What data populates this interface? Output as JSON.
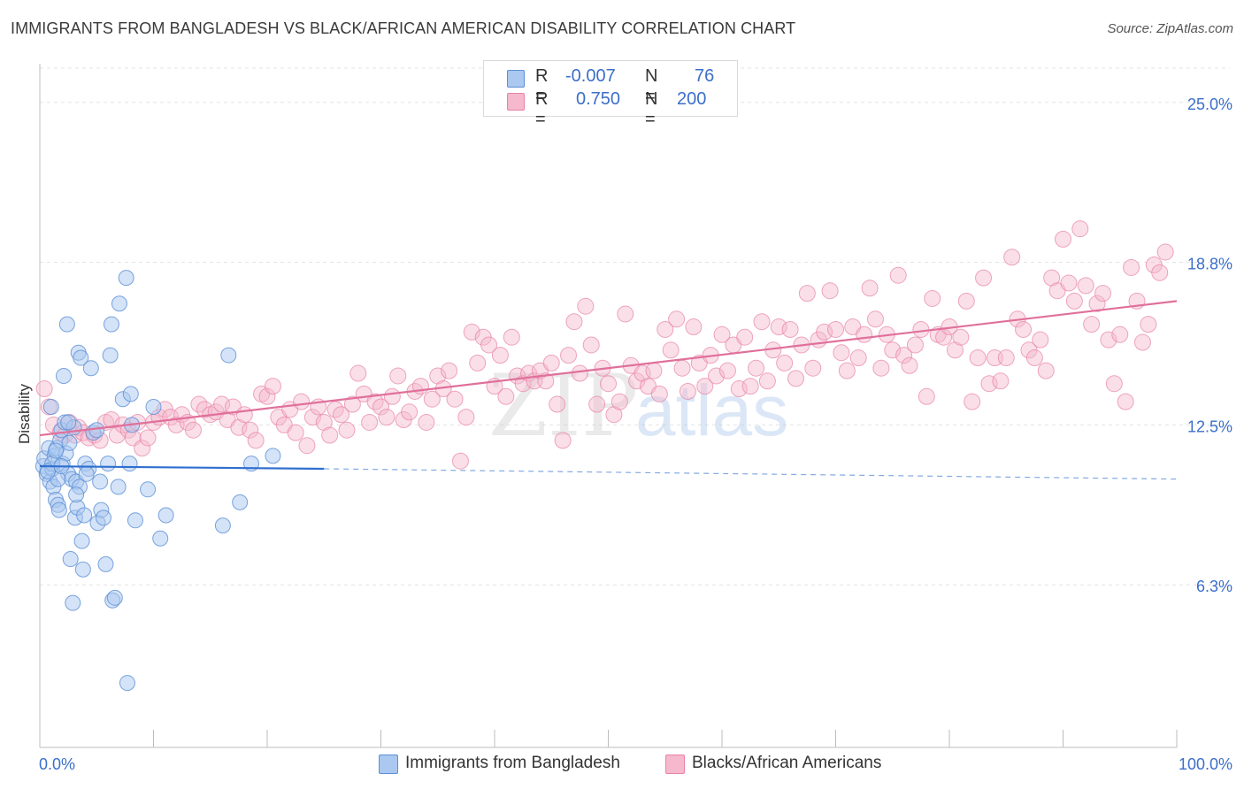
{
  "title": "IMMIGRANTS FROM BANGLADESH VS BLACK/AFRICAN AMERICAN DISABILITY CORRELATION CHART",
  "source": "Source: ZipAtlas.com",
  "watermark": {
    "zip": "ZIP",
    "atlas": "atlas"
  },
  "legend_stats": {
    "r_label": "R =",
    "n_label": "N =",
    "series1": {
      "r": "-0.007",
      "n": "76"
    },
    "series2": {
      "r": "0.750",
      "n": "200"
    }
  },
  "colors": {
    "blue_fill": "#aac8f0",
    "blue_stroke": "#5b8fd6",
    "blue_line": "#2f6fcf",
    "pink_fill": "#f5b8cc",
    "pink_stroke": "#e882a4",
    "pink_line": "#e0709a",
    "tick_label": "#3b6fc9",
    "grid": "#e3e3e3"
  },
  "chart_data": {
    "type": "scatter",
    "title": "IMMIGRANTS FROM BANGLADESH VS BLACK/AFRICAN AMERICAN DISABILITY CORRELATION CHART",
    "ylabel": "Disability",
    "xlabel": "",
    "xlim": [
      0,
      100
    ],
    "ylim": [
      0,
      26.5
    ],
    "x_tick_labels": [
      "0.0%",
      "100.0%"
    ],
    "y_ticks": [
      6.3,
      12.5,
      18.8,
      25.0
    ],
    "y_tick_labels": [
      "6.3%",
      "12.5%",
      "18.8%",
      "25.0%"
    ],
    "grid": true,
    "legend_position": "bottom",
    "series": [
      {
        "name": "Immigrants from Bangladesh",
        "r": -0.007,
        "n": 76,
        "trend": {
          "x": [
            0,
            25
          ],
          "y": [
            10.9,
            10.8
          ]
        },
        "trend_extension": {
          "x": [
            25,
            100
          ],
          "y": [
            10.8,
            10.4
          ]
        },
        "points": [
          [
            0.3,
            10.9
          ],
          [
            0.4,
            11.2
          ],
          [
            0.6,
            10.6
          ],
          [
            0.8,
            11.6
          ],
          [
            0.9,
            10.3
          ],
          [
            1.0,
            13.2
          ],
          [
            1.1,
            10.8
          ],
          [
            1.2,
            10.1
          ],
          [
            1.3,
            11.3
          ],
          [
            1.4,
            9.6
          ],
          [
            1.5,
            11.6
          ],
          [
            1.6,
            9.4
          ],
          [
            1.7,
            9.2
          ],
          [
            1.8,
            11.9
          ],
          [
            1.9,
            12.3
          ],
          [
            2.0,
            11.0
          ],
          [
            2.1,
            14.4
          ],
          [
            2.2,
            12.6
          ],
          [
            2.3,
            11.4
          ],
          [
            2.4,
            16.4
          ],
          [
            2.5,
            10.6
          ],
          [
            2.6,
            11.8
          ],
          [
            2.7,
            7.3
          ],
          [
            2.8,
            10.4
          ],
          [
            3.0,
            12.4
          ],
          [
            3.1,
            8.9
          ],
          [
            3.2,
            10.3
          ],
          [
            3.3,
            9.3
          ],
          [
            3.4,
            15.3
          ],
          [
            3.5,
            10.1
          ],
          [
            3.6,
            15.1
          ],
          [
            3.7,
            8.0
          ],
          [
            3.8,
            6.9
          ],
          [
            3.9,
            9.0
          ],
          [
            4.0,
            11.0
          ],
          [
            4.3,
            10.8
          ],
          [
            4.5,
            14.7
          ],
          [
            4.7,
            12.2
          ],
          [
            5.0,
            12.3
          ],
          [
            5.1,
            8.7
          ],
          [
            5.4,
            9.2
          ],
          [
            5.6,
            8.9
          ],
          [
            5.8,
            7.1
          ],
          [
            6.0,
            11.0
          ],
          [
            6.2,
            15.2
          ],
          [
            6.3,
            16.4
          ],
          [
            6.4,
            5.7
          ],
          [
            6.6,
            5.8
          ],
          [
            6.9,
            10.1
          ],
          [
            7.0,
            17.2
          ],
          [
            7.3,
            13.5
          ],
          [
            7.6,
            18.2
          ],
          [
            7.7,
            2.5
          ],
          [
            7.9,
            11.0
          ],
          [
            8.0,
            13.7
          ],
          [
            8.1,
            12.5
          ],
          [
            8.4,
            8.8
          ],
          [
            9.5,
            10.0
          ],
          [
            10.0,
            13.2
          ],
          [
            10.6,
            8.1
          ],
          [
            11.1,
            9.0
          ],
          [
            16.1,
            8.6
          ],
          [
            16.6,
            15.2
          ],
          [
            17.6,
            9.5
          ],
          [
            18.6,
            11.0
          ],
          [
            20.5,
            11.3
          ],
          [
            1.1,
            11.0
          ],
          [
            1.6,
            10.4
          ],
          [
            2.9,
            5.6
          ],
          [
            3.2,
            9.8
          ],
          [
            0.7,
            10.7
          ],
          [
            1.9,
            10.9
          ],
          [
            4.1,
            10.6
          ],
          [
            5.3,
            10.3
          ],
          [
            2.5,
            12.6
          ],
          [
            1.4,
            11.5
          ]
        ]
      },
      {
        "name": "Blacks/African Americans",
        "r": 0.75,
        "n": 200,
        "trend": {
          "x": [
            0,
            100
          ],
          "y": [
            12.1,
            17.3
          ]
        },
        "points": [
          [
            0.4,
            13.9
          ],
          [
            0.8,
            13.2
          ],
          [
            1.2,
            12.5
          ],
          [
            1.8,
            12.2
          ],
          [
            2.2,
            12.1
          ],
          [
            2.6,
            12.6
          ],
          [
            3.1,
            12.1
          ],
          [
            3.4,
            12.4
          ],
          [
            3.8,
            12.2
          ],
          [
            4.3,
            12.0
          ],
          [
            4.8,
            12.1
          ],
          [
            5.3,
            11.9
          ],
          [
            5.8,
            12.6
          ],
          [
            6.3,
            12.7
          ],
          [
            6.8,
            12.1
          ],
          [
            7.3,
            12.5
          ],
          [
            7.8,
            12.3
          ],
          [
            8.2,
            12.0
          ],
          [
            8.6,
            12.6
          ],
          [
            9.0,
            11.6
          ],
          [
            9.5,
            12.0
          ],
          [
            10.0,
            12.6
          ],
          [
            10.5,
            12.8
          ],
          [
            11.0,
            13.1
          ],
          [
            11.5,
            12.8
          ],
          [
            12.0,
            12.5
          ],
          [
            12.5,
            12.9
          ],
          [
            13.0,
            12.6
          ],
          [
            13.5,
            12.3
          ],
          [
            14.0,
            13.3
          ],
          [
            14.5,
            13.1
          ],
          [
            15.0,
            12.9
          ],
          [
            15.5,
            13.0
          ],
          [
            16.0,
            13.3
          ],
          [
            16.5,
            12.7
          ],
          [
            17.0,
            13.2
          ],
          [
            17.5,
            12.4
          ],
          [
            18.0,
            12.9
          ],
          [
            18.5,
            12.3
          ],
          [
            19.0,
            11.9
          ],
          [
            19.5,
            13.7
          ],
          [
            20.0,
            13.6
          ],
          [
            20.5,
            14.0
          ],
          [
            21.0,
            12.8
          ],
          [
            21.5,
            12.5
          ],
          [
            22.0,
            13.1
          ],
          [
            22.5,
            12.2
          ],
          [
            23.0,
            13.4
          ],
          [
            23.5,
            11.7
          ],
          [
            24.0,
            12.8
          ],
          [
            24.5,
            13.2
          ],
          [
            25.0,
            12.6
          ],
          [
            25.5,
            12.1
          ],
          [
            26.0,
            13.1
          ],
          [
            26.5,
            12.9
          ],
          [
            27.0,
            12.3
          ],
          [
            27.5,
            13.3
          ],
          [
            28.0,
            14.5
          ],
          [
            28.5,
            13.7
          ],
          [
            29.0,
            12.6
          ],
          [
            29.5,
            13.4
          ],
          [
            30.0,
            13.2
          ],
          [
            30.5,
            12.8
          ],
          [
            31.0,
            13.6
          ],
          [
            31.5,
            14.4
          ],
          [
            32.0,
            12.7
          ],
          [
            32.5,
            13.0
          ],
          [
            33.0,
            13.8
          ],
          [
            33.5,
            14.0
          ],
          [
            34.0,
            12.6
          ],
          [
            34.5,
            13.5
          ],
          [
            35.0,
            14.4
          ],
          [
            35.5,
            13.9
          ],
          [
            36.0,
            14.6
          ],
          [
            36.5,
            13.5
          ],
          [
            37.0,
            11.1
          ],
          [
            37.5,
            12.8
          ],
          [
            38.0,
            16.1
          ],
          [
            38.5,
            14.9
          ],
          [
            39.0,
            15.9
          ],
          [
            39.5,
            15.6
          ],
          [
            40.0,
            14.0
          ],
          [
            40.5,
            15.2
          ],
          [
            41.0,
            13.6
          ],
          [
            41.5,
            15.9
          ],
          [
            42.0,
            14.4
          ],
          [
            42.5,
            14.1
          ],
          [
            43.0,
            14.5
          ],
          [
            43.5,
            14.2
          ],
          [
            44.0,
            14.6
          ],
          [
            44.5,
            14.2
          ],
          [
            45.0,
            14.9
          ],
          [
            45.5,
            13.3
          ],
          [
            46.0,
            11.9
          ],
          [
            46.5,
            15.2
          ],
          [
            47.0,
            16.5
          ],
          [
            47.5,
            14.5
          ],
          [
            48.0,
            17.1
          ],
          [
            48.5,
            15.6
          ],
          [
            49.0,
            13.3
          ],
          [
            49.5,
            14.7
          ],
          [
            50.0,
            14.1
          ],
          [
            50.5,
            12.9
          ],
          [
            51.0,
            13.4
          ],
          [
            51.5,
            16.8
          ],
          [
            52.0,
            14.8
          ],
          [
            52.5,
            14.2
          ],
          [
            53.0,
            14.5
          ],
          [
            53.5,
            14.0
          ],
          [
            54.0,
            14.6
          ],
          [
            54.5,
            13.7
          ],
          [
            55.0,
            16.2
          ],
          [
            55.5,
            15.4
          ],
          [
            56.0,
            16.6
          ],
          [
            56.5,
            14.7
          ],
          [
            57.0,
            13.8
          ],
          [
            57.5,
            16.3
          ],
          [
            58.0,
            14.9
          ],
          [
            58.5,
            14.0
          ],
          [
            59.0,
            15.2
          ],
          [
            59.5,
            14.4
          ],
          [
            60.0,
            16.0
          ],
          [
            60.5,
            14.6
          ],
          [
            61.0,
            15.6
          ],
          [
            61.5,
            13.9
          ],
          [
            62.0,
            15.9
          ],
          [
            62.5,
            14.0
          ],
          [
            63.0,
            14.7
          ],
          [
            63.5,
            16.5
          ],
          [
            64.0,
            14.2
          ],
          [
            64.5,
            15.4
          ],
          [
            65.0,
            16.3
          ],
          [
            65.5,
            14.9
          ],
          [
            66.0,
            16.2
          ],
          [
            66.5,
            14.3
          ],
          [
            67.0,
            15.6
          ],
          [
            67.5,
            17.6
          ],
          [
            68.0,
            14.7
          ],
          [
            68.5,
            15.8
          ],
          [
            69.0,
            16.1
          ],
          [
            69.5,
            17.7
          ],
          [
            70.0,
            16.2
          ],
          [
            70.5,
            15.3
          ],
          [
            71.0,
            14.6
          ],
          [
            71.5,
            16.3
          ],
          [
            72.0,
            15.1
          ],
          [
            72.5,
            16.0
          ],
          [
            73.0,
            17.8
          ],
          [
            73.5,
            16.6
          ],
          [
            74.0,
            14.7
          ],
          [
            74.5,
            16.0
          ],
          [
            75.0,
            15.4
          ],
          [
            75.5,
            18.3
          ],
          [
            76.0,
            15.2
          ],
          [
            76.5,
            14.8
          ],
          [
            77.0,
            15.6
          ],
          [
            77.5,
            16.2
          ],
          [
            78.0,
            13.6
          ],
          [
            78.5,
            17.4
          ],
          [
            79.0,
            16.0
          ],
          [
            79.5,
            15.9
          ],
          [
            80.0,
            16.3
          ],
          [
            80.5,
            15.4
          ],
          [
            81.0,
            15.9
          ],
          [
            81.5,
            17.3
          ],
          [
            82.0,
            13.4
          ],
          [
            82.5,
            15.1
          ],
          [
            83.0,
            18.2
          ],
          [
            83.5,
            14.1
          ],
          [
            84.0,
            15.1
          ],
          [
            84.5,
            14.2
          ],
          [
            85.0,
            15.1
          ],
          [
            85.5,
            19.0
          ],
          [
            86.0,
            16.6
          ],
          [
            86.5,
            16.2
          ],
          [
            87.0,
            15.4
          ],
          [
            87.5,
            15.1
          ],
          [
            88.0,
            15.8
          ],
          [
            88.5,
            14.6
          ],
          [
            89.0,
            18.2
          ],
          [
            89.5,
            17.7
          ],
          [
            90.0,
            19.7
          ],
          [
            90.5,
            18.0
          ],
          [
            91.0,
            17.3
          ],
          [
            91.5,
            20.1
          ],
          [
            92.0,
            17.9
          ],
          [
            92.5,
            16.4
          ],
          [
            93.0,
            17.2
          ],
          [
            93.5,
            17.6
          ],
          [
            94.0,
            15.8
          ],
          [
            94.5,
            14.1
          ],
          [
            95.0,
            16.0
          ],
          [
            95.5,
            13.4
          ],
          [
            96.0,
            18.6
          ],
          [
            96.5,
            17.3
          ],
          [
            97.0,
            15.7
          ],
          [
            97.5,
            16.4
          ],
          [
            98.0,
            18.7
          ],
          [
            98.5,
            18.4
          ],
          [
            99.0,
            19.2
          ]
        ]
      }
    ]
  },
  "legend": {
    "items": [
      {
        "label": "Immigrants from Bangladesh"
      },
      {
        "label": "Blacks/African Americans"
      }
    ]
  }
}
